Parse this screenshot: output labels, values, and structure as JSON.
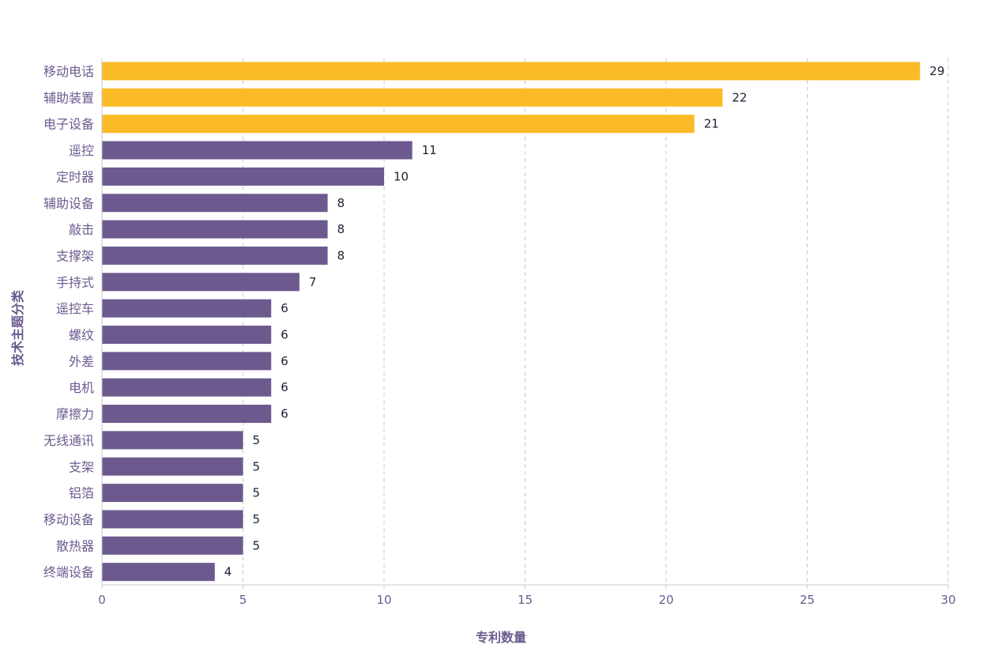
{
  "chart_data": {
    "type": "bar",
    "orientation": "horizontal",
    "categories": [
      "移动电话",
      "辅助装置",
      "电子设备",
      "遥控",
      "定时器",
      "辅助设备",
      "敲击",
      "支撑架",
      "手持式",
      "遥控车",
      "螺纹",
      "外差",
      "电机",
      "摩擦力",
      "无线通讯",
      "支架",
      "铝箔",
      "移动设备",
      "散热器",
      "终端设备"
    ],
    "values": [
      29,
      22,
      21,
      11,
      10,
      8,
      8,
      8,
      7,
      6,
      6,
      6,
      6,
      6,
      5,
      5,
      5,
      5,
      5,
      4
    ],
    "highlight_top_n": 3,
    "colors": {
      "highlight": "#fbbb26",
      "default": "#6c5a8f",
      "grid": "#c8c8c8",
      "axis_text": "#6c5a8f",
      "value_text": "#1e1e33"
    },
    "xlabel": "专利数量",
    "ylabel": "技术主题分类",
    "xlim": [
      0,
      30
    ],
    "xticks": [
      0,
      5,
      10,
      15,
      20,
      25,
      30
    ],
    "xtick_labels": [
      "0",
      "5",
      "10",
      "15",
      "20",
      "25",
      "30"
    ],
    "grid": "vertical-dashed",
    "legend": "none"
  }
}
